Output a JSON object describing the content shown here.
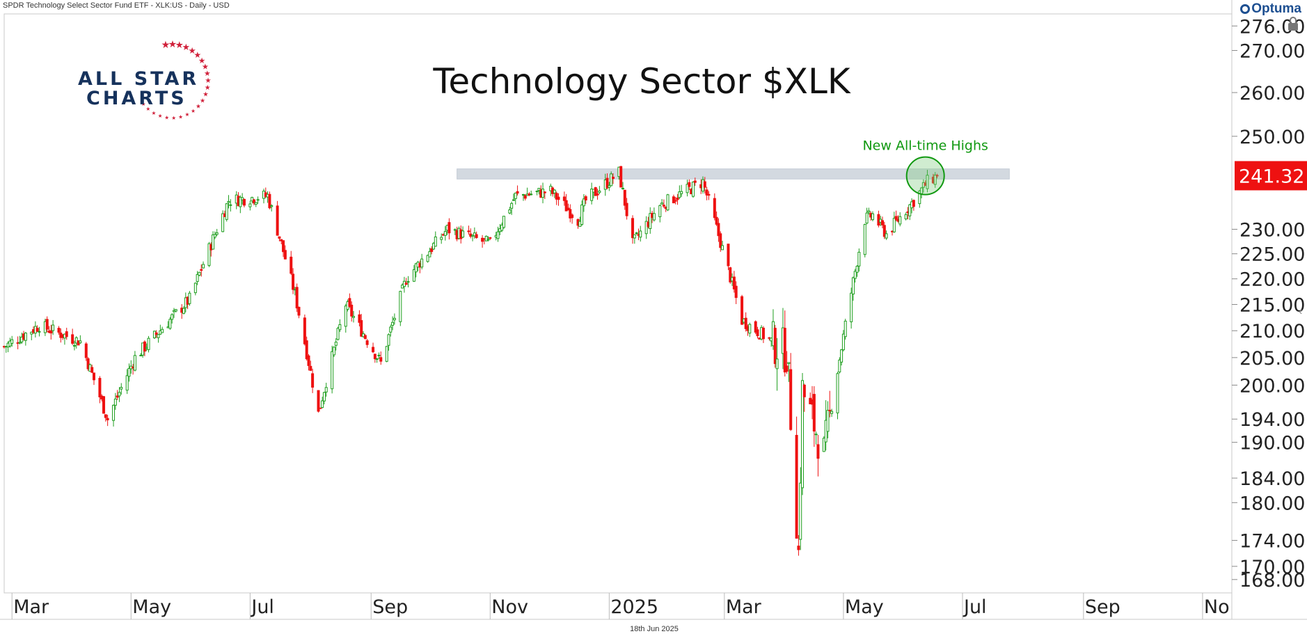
{
  "header": {
    "instrument": "SPDR Technology Select Sector Fund ETF - XLK:US - Daily - USD",
    "brand": "Optuma"
  },
  "logo": {
    "line1": "ALL STAR",
    "line2": "CHARTS",
    "star_color": "#d0203a",
    "text_color": "#16325c"
  },
  "footer": {
    "date": "18th Jun 2025"
  },
  "chart_data": {
    "type": "candlestick",
    "title": "Technology Sector $XLK",
    "xlabel": "",
    "ylabel": "",
    "y_scale": "log",
    "ylim": [
      166,
      279
    ],
    "yticks": [
      "276.00",
      "270.00",
      "260.00",
      "250.00",
      "230.00",
      "225.00",
      "220.00",
      "215.00",
      "210.00",
      "205.00",
      "200.00",
      "194.00",
      "190.00",
      "184.00",
      "180.00",
      "174.00",
      "170.00",
      "168.00"
    ],
    "x_labels": [
      "Mar",
      "May",
      "Jul",
      "Sep",
      "Nov",
      "2025",
      "Mar",
      "May",
      "Jul",
      "Sep",
      "No"
    ],
    "x_label_dates": [
      "2024-03-01",
      "2024-05-01",
      "2024-07-01",
      "2024-09-01",
      "2024-11-01",
      "2025-01-01",
      "2025-03-01",
      "2025-05-01",
      "2025-07-01",
      "2025-09-01",
      "2025-11-01"
    ],
    "x_range": [
      "2024-02-26",
      "2025-11-16"
    ],
    "last_price": "241.32",
    "last_price_color": "#ee1111",
    "up_color": "#1e9e1e",
    "down_color": "#ee1111",
    "resistance_zone": {
      "from_date": "2024-10-15",
      "to_date": "2025-07-25",
      "low": 240.6,
      "high": 242.8,
      "color": "#d3d9e0"
    },
    "annotation": {
      "text": "New All-time Highs",
      "date": "2025-06-12",
      "price": 241.3,
      "color": "#119911"
    },
    "path_dates": [
      "2024-02-26",
      "2024-03-15",
      "2024-04-05",
      "2024-04-19",
      "2024-05-03",
      "2024-05-31",
      "2024-06-20",
      "2024-07-10",
      "2024-07-24",
      "2024-08-05",
      "2024-08-19",
      "2024-09-06",
      "2024-09-19",
      "2024-10-10",
      "2024-11-01",
      "2024-11-14",
      "2024-12-02",
      "2024-12-16",
      "2024-12-20",
      "2025-01-06",
      "2025-01-13",
      "2025-01-27",
      "2025-02-18",
      "2025-03-10",
      "2025-04-02",
      "2025-04-08",
      "2025-04-10",
      "2025-04-21",
      "2025-05-12",
      "2025-05-16",
      "2025-05-23",
      "2025-06-06",
      "2025-06-13",
      "2025-06-18"
    ],
    "path_closes": [
      207,
      211,
      208,
      194,
      205,
      216,
      236,
      237,
      217,
      195,
      215,
      204,
      220,
      230,
      227,
      237,
      238,
      232,
      236,
      242,
      227,
      235,
      240,
      212,
      206,
      172,
      199,
      188,
      232,
      233,
      229,
      236,
      240,
      241.32
    ]
  }
}
